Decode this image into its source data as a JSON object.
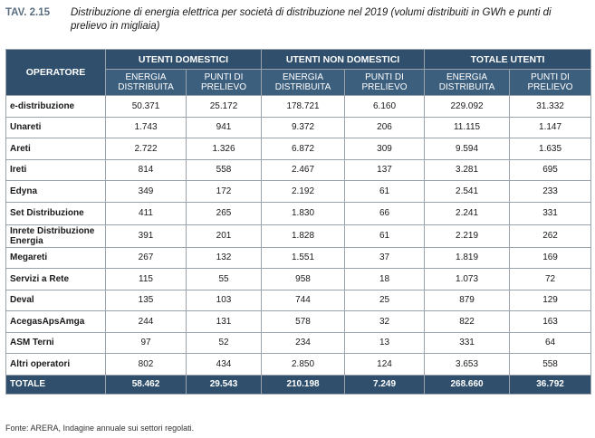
{
  "caption": {
    "label": "TAV. 2.15",
    "text": "Distribuzione di energia elettrica per società di distribuzione nel 2019 (volumi distribuiti in GWh e punti di prelievo in migliaia)"
  },
  "table": {
    "operator_header": "OPERATORE",
    "groups": [
      "UTENTI DOMESTICI",
      "UTENTI NON DOMESTICI",
      "TOTALE UTENTI"
    ],
    "subheaders": [
      "ENERGIA DISTRIBUITA",
      "PUNTI DI PRELIEVO",
      "ENERGIA DISTRIBUITA",
      "PUNTI DI PRELIEVO",
      "ENERGIA DISTRIBUITA",
      "PUNTI DI PRELIEVO"
    ],
    "rows": [
      {
        "name": "e-distribuzione",
        "v": [
          "50.371",
          "25.172",
          "178.721",
          "6.160",
          "229.092",
          "31.332"
        ]
      },
      {
        "name": "Unareti",
        "v": [
          "1.743",
          "941",
          "9.372",
          "206",
          "11.115",
          "1.147"
        ]
      },
      {
        "name": "Areti",
        "v": [
          "2.722",
          "1.326",
          "6.872",
          "309",
          "9.594",
          "1.635"
        ]
      },
      {
        "name": "Ireti",
        "v": [
          "814",
          "558",
          "2.467",
          "137",
          "3.281",
          "695"
        ]
      },
      {
        "name": "Edyna",
        "v": [
          "349",
          "172",
          "2.192",
          "61",
          "2.541",
          "233"
        ]
      },
      {
        "name": "Set Distribuzione",
        "v": [
          "411",
          "265",
          "1.830",
          "66",
          "2.241",
          "331"
        ]
      },
      {
        "name": "Inrete Distribuzione Energia",
        "v": [
          "391",
          "201",
          "1.828",
          "61",
          "2.219",
          "262"
        ]
      },
      {
        "name": "Megareti",
        "v": [
          "267",
          "132",
          "1.551",
          "37",
          "1.819",
          "169"
        ]
      },
      {
        "name": "Servizi a Rete",
        "v": [
          "115",
          "55",
          "958",
          "18",
          "1.073",
          "72"
        ]
      },
      {
        "name": "Deval",
        "v": [
          "135",
          "103",
          "744",
          "25",
          "879",
          "129"
        ]
      },
      {
        "name": "AcegasApsAmga",
        "v": [
          "244",
          "131",
          "578",
          "32",
          "822",
          "163"
        ]
      },
      {
        "name": "ASM Terni",
        "v": [
          "97",
          "52",
          "234",
          "13",
          "331",
          "64"
        ]
      },
      {
        "name": "Altri operatori",
        "v": [
          "802",
          "434",
          "2.850",
          "124",
          "3.653",
          "558"
        ]
      }
    ],
    "total": {
      "name": "TOTALE",
      "v": [
        "58.462",
        "29.543",
        "210.198",
        "7.249",
        "268.660",
        "36.792"
      ]
    }
  },
  "source": "Fonte: ARERA, Indagine annuale sui settori regolati.",
  "colors": {
    "header_bg": "#2f4f6d",
    "caption_label": "#5a6e80",
    "border": "#9aa3ab"
  }
}
